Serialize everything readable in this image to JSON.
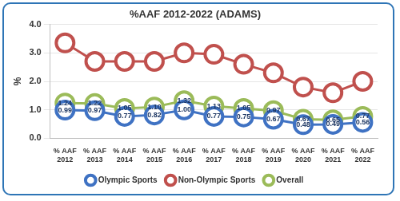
{
  "chart_data": {
    "type": "line",
    "title": "%AAF 2012-2022 (ADAMS)",
    "y_label": "%",
    "categories": [
      "% AAF 2012",
      "% AAF 2013",
      "% AAF 2014",
      "% AAF 2015",
      "% AAF 2016",
      "% AAF 2017",
      "% AAF 2018",
      "% AAF 2019",
      "% AAF 2020",
      "% AAF 2021",
      "% AAF 2022"
    ],
    "series": [
      {
        "name": "Olympic Sports",
        "color": "#3f72c3",
        "marker": "circle",
        "values": [
          0.99,
          0.97,
          0.77,
          0.82,
          1.0,
          0.77,
          0.75,
          0.67,
          0.48,
          0.49,
          0.56
        ],
        "value_labels": [
          "0.99",
          "0.97",
          "0.77",
          "0.82",
          "1.00",
          "0.77",
          "0.75",
          "0.67",
          "0.48",
          "0.49",
          "0.56"
        ],
        "data_labels": true
      },
      {
        "name": "Non-Olympic Sports",
        "color": "#c0504d",
        "marker": "circle",
        "values": [
          3.35,
          2.7,
          2.7,
          2.7,
          3.0,
          2.95,
          2.6,
          2.3,
          1.8,
          1.6,
          2.0
        ],
        "data_labels": false
      },
      {
        "name": "Overall",
        "color": "#9bbb59",
        "marker": "circle",
        "values": [
          1.24,
          1.22,
          1.05,
          1.1,
          1.32,
          1.13,
          1.05,
          0.97,
          0.67,
          0.65,
          0.77
        ],
        "value_labels": [
          "1.24",
          "1.22",
          "1.05",
          "1.10",
          "1.32",
          "1.13",
          "1.05",
          "0.97",
          "0.67",
          "0.65",
          "0.77"
        ],
        "data_labels": true
      }
    ],
    "ylim": [
      0,
      4
    ],
    "yticks": [
      {
        "value": 0,
        "label": "0.0"
      },
      {
        "value": 1,
        "label": "1.0"
      },
      {
        "value": 2,
        "label": "2.0"
      },
      {
        "value": 3,
        "label": "3.0"
      },
      {
        "value": 4,
        "label": "4.0"
      }
    ],
    "grid": true,
    "legend": "bottom"
  }
}
